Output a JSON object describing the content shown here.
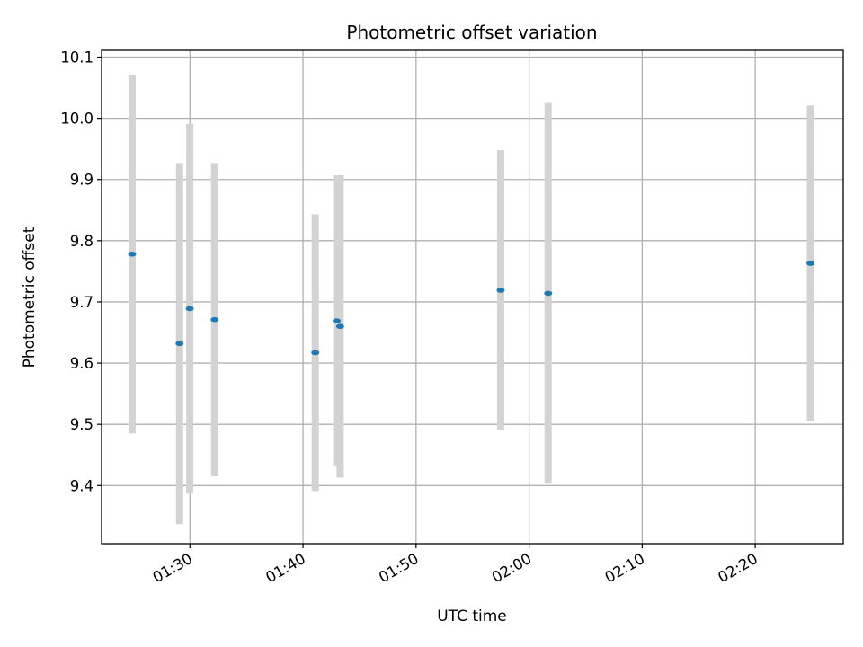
{
  "chart_data": {
    "type": "scatter",
    "title": "Photometric offset variation",
    "xlabel": "UTC time",
    "ylabel": "Photometric offset",
    "x_ticks": [
      "01:30",
      "01:40",
      "01:50",
      "02:00",
      "02:10",
      "02:20"
    ],
    "y_ticks": [
      "9.4",
      "9.5",
      "9.6",
      "9.7",
      "9.8",
      "9.9",
      "10.0",
      "10.1"
    ],
    "xlim": [
      "01:22:11",
      "02:27:47"
    ],
    "ylim": [
      9.305,
      10.111
    ],
    "grid": true,
    "colors": {
      "marker": "#1f77b4",
      "errorbar": "#d3d3d3",
      "grid": "#b0b0b0"
    },
    "points": [
      {
        "time": "01:24:53",
        "y": 9.778,
        "err": 0.293
      },
      {
        "time": "01:29:05",
        "y": 9.632,
        "err": 0.295
      },
      {
        "time": "01:29:59",
        "y": 9.689,
        "err": 0.302
      },
      {
        "time": "01:32:11",
        "y": 9.671,
        "err": 0.256
      },
      {
        "time": "01:41:05",
        "y": 9.617,
        "err": 0.226
      },
      {
        "time": "01:42:59",
        "y": 9.669,
        "err": 0.238
      },
      {
        "time": "01:43:17",
        "y": 9.66,
        "err": 0.247
      },
      {
        "time": "01:57:29",
        "y": 9.719,
        "err": 0.229
      },
      {
        "time": "02:01:41",
        "y": 9.714,
        "err": 0.311
      },
      {
        "time": "02:24:53",
        "y": 9.763,
        "err": 0.258
      }
    ]
  }
}
